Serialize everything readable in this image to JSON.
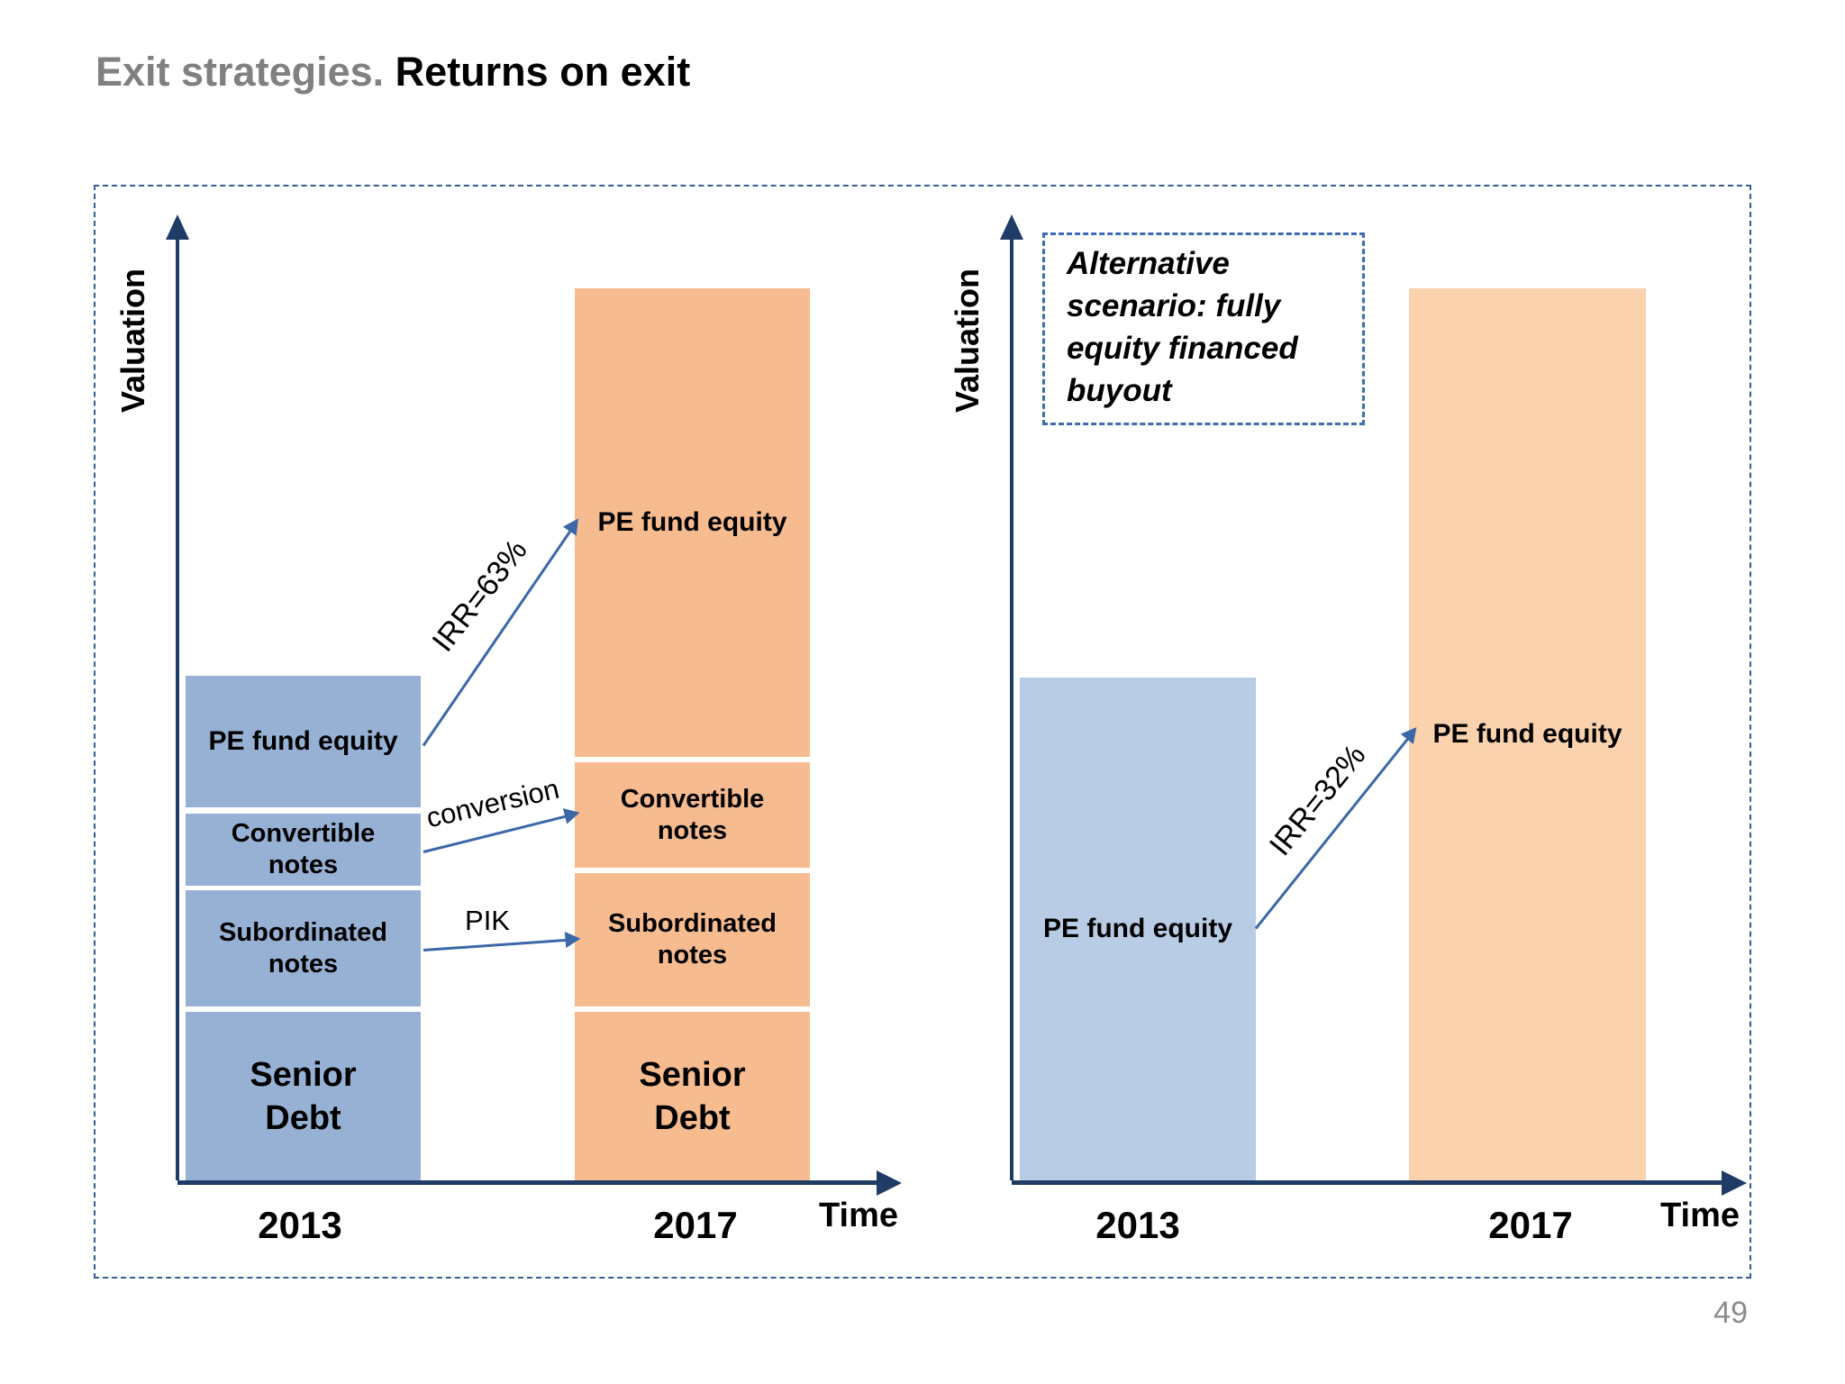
{
  "slide": {
    "title_gray": "Exit strategies.",
    "title_black": "Returns on exit",
    "page_number": "49"
  },
  "colors": {
    "left_blue": "#97B1D5",
    "left_orange": "#F6BB8E",
    "right_blue": "#B9CCE5",
    "right_orange": "#FAD2AE",
    "axis": "#1F3C67",
    "arrow": "#3C68A8",
    "outer_border": "#375E94",
    "note_border": "#3E6CB0",
    "title_gray": "#808080",
    "page_gray": "#8C8C8C"
  },
  "left_chart": {
    "ylabel": "Valuation",
    "xlabel": "Time",
    "tick_2013": "2013",
    "tick_2017": "2017",
    "bar_2013": {
      "pe": "PE fund equity",
      "convertible": "Convertible\nnotes",
      "subordinated": "Subordinated\nnotes",
      "senior": "Senior\nDebt"
    },
    "bar_2017": {
      "pe": "PE fund equity",
      "convertible": "Convertible\nnotes",
      "subordinated": "Subordinated\nnotes",
      "senior": "Senior\nDebt"
    },
    "irr_label": "IRR=63%",
    "conversion_label": "conversion",
    "pik_label": "PIK"
  },
  "right_chart": {
    "ylabel": "Valuation",
    "xlabel": "Time",
    "tick_2013": "2013",
    "tick_2017": "2017",
    "note": "Alternative\nscenario: fully\nequity financed\nbuyout",
    "bar_2013_label": "PE fund equity",
    "bar_2017_label": "PE fund equity",
    "irr_label": "IRR=32%"
  },
  "chart_data": [
    {
      "type": "bar",
      "subtype": "stacked-conceptual",
      "title": "",
      "xlabel": "Time",
      "ylabel": "Valuation",
      "categories": [
        "2013",
        "2017"
      ],
      "series": [
        {
          "name": "Senior Debt",
          "values": [
            34,
            35
          ]
        },
        {
          "name": "Subordinated notes",
          "values": [
            24,
            27
          ]
        },
        {
          "name": "Convertible notes",
          "values": [
            15,
            22
          ]
        },
        {
          "name": "PE fund equity",
          "values": [
            27,
            96
          ]
        }
      ],
      "value_note": "no numeric scale shown; values are relative heights with 2013 total = 100",
      "bar_colors": {
        "2013": "#97B1D5",
        "2017": "#F6BB8E"
      },
      "grid": false,
      "legend": "none",
      "annotations": [
        {
          "text": "IRR=63%",
          "from": "2013 PE fund equity",
          "to": "2017 PE fund equity"
        },
        {
          "text": "conversion",
          "from": "2013 Convertible notes",
          "to": "2017 Convertible notes"
        },
        {
          "text": "PIK",
          "from": "2013 Subordinated notes",
          "to": "2017 Subordinated notes"
        }
      ]
    },
    {
      "type": "bar",
      "subtype": "conceptual",
      "title": "Alternative scenario: fully equity financed buyout",
      "xlabel": "Time",
      "ylabel": "Valuation",
      "categories": [
        "2013",
        "2017"
      ],
      "series": [
        {
          "name": "PE fund equity",
          "values": [
            100,
            178
          ]
        }
      ],
      "value_note": "no numeric scale shown; values are relative heights with 2013 bar = 100",
      "bar_colors": {
        "2013": "#B9CCE5",
        "2017": "#FAD2AE"
      },
      "grid": false,
      "legend": "none",
      "annotations": [
        {
          "text": "IRR=32%",
          "from": "2013 PE fund equity",
          "to": "2017 PE fund equity"
        }
      ]
    }
  ]
}
